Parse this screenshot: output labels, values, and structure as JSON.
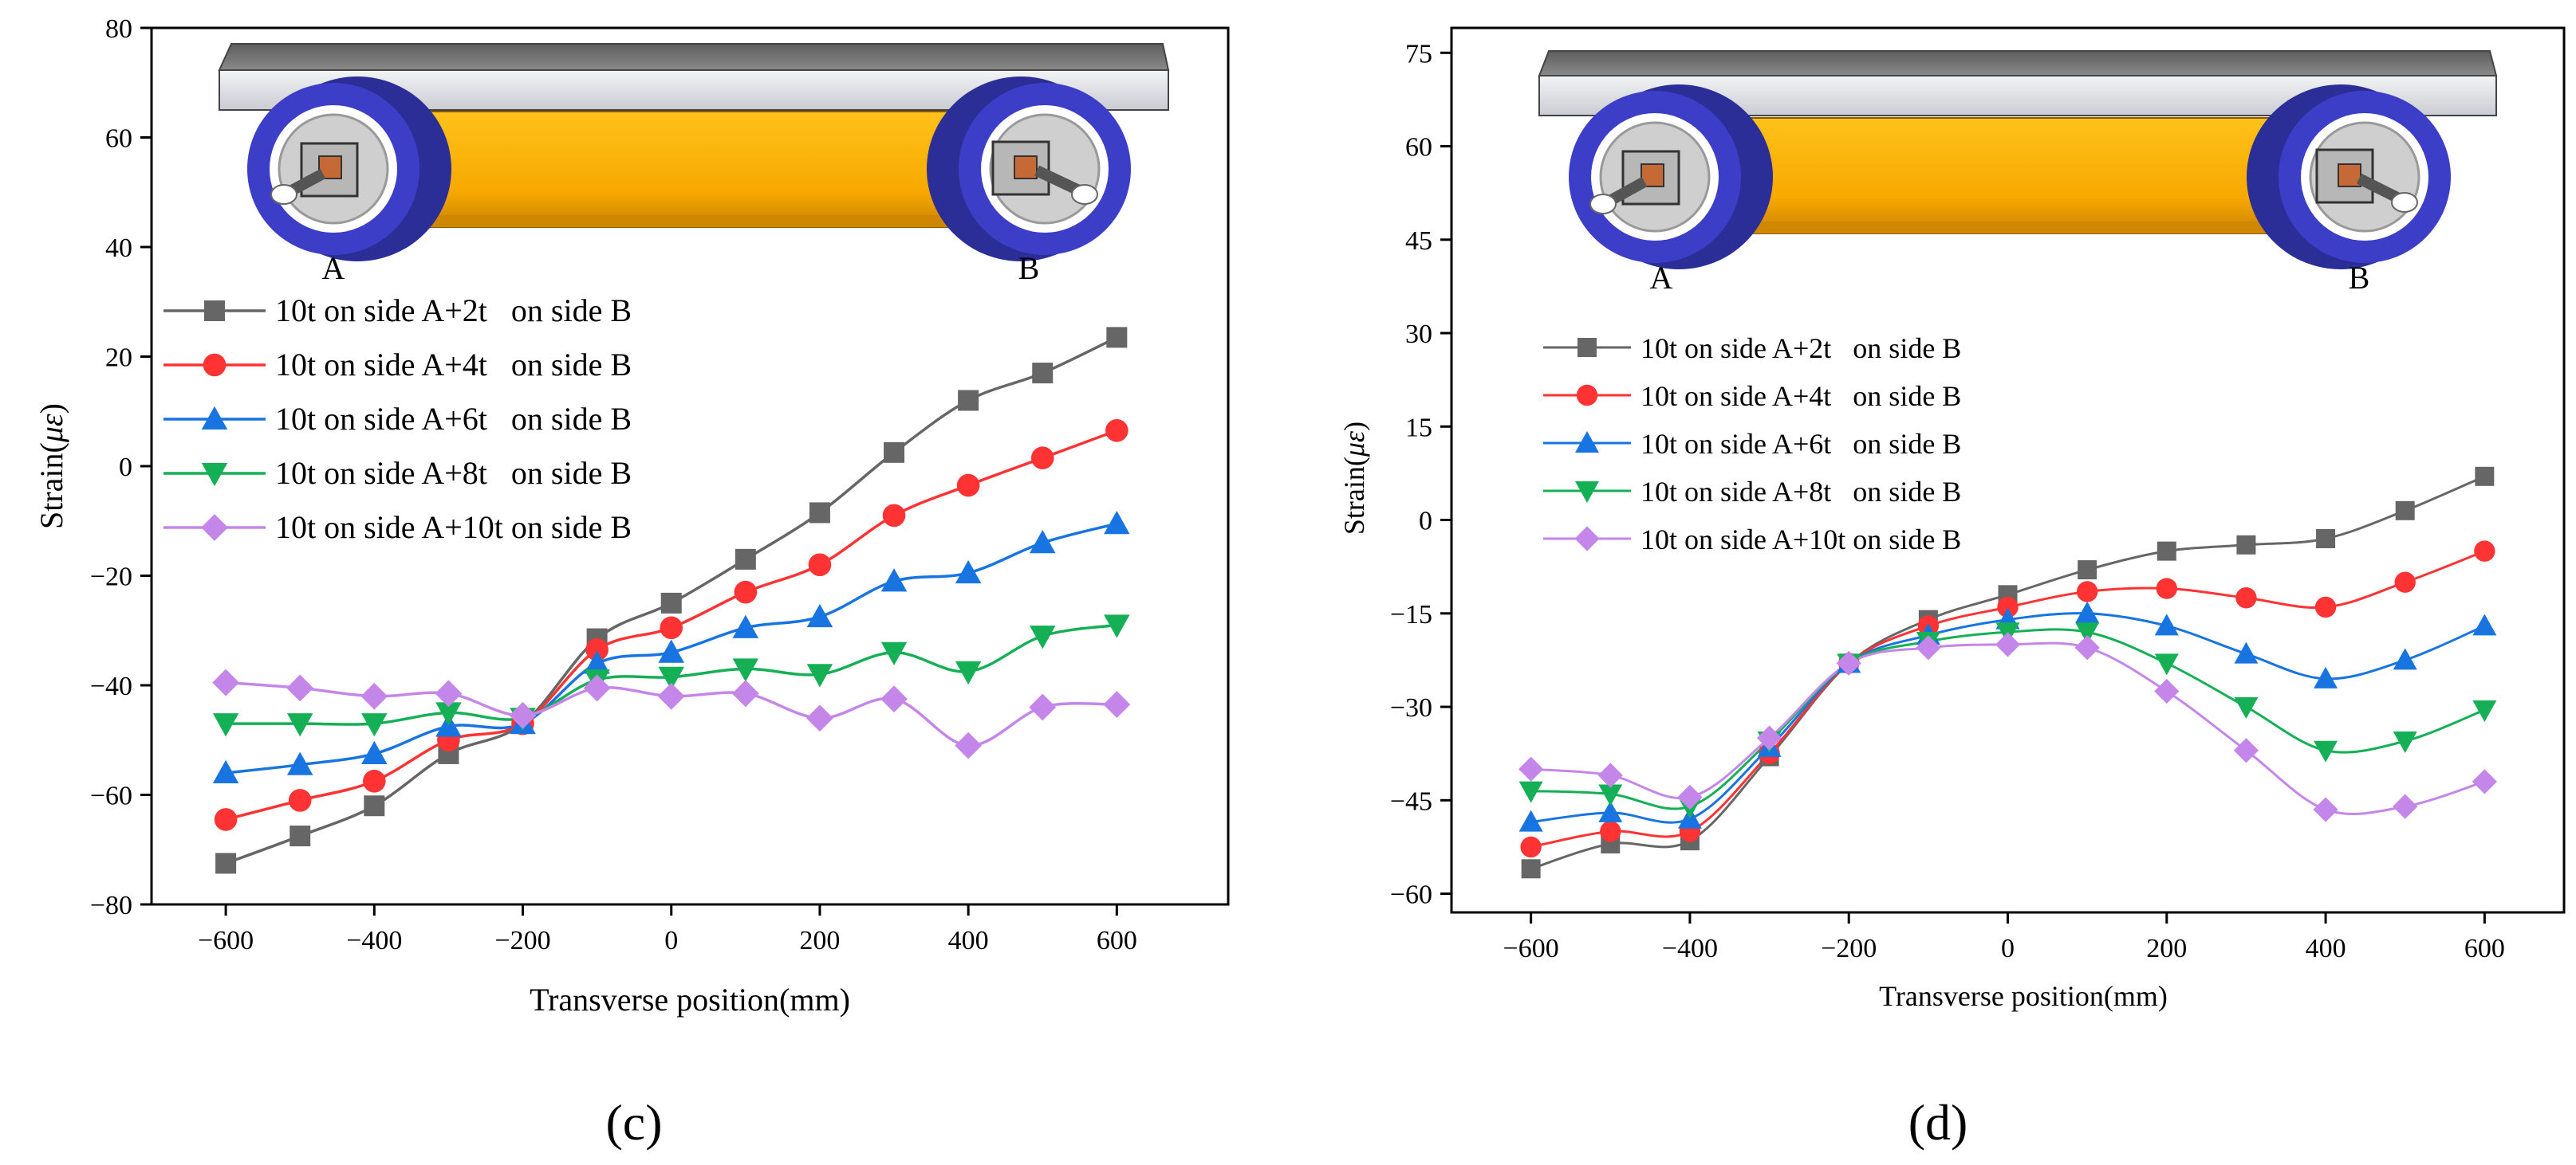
{
  "chart_data": [
    {
      "type": "line",
      "panel_label": "(c)",
      "xlabel": "Transverse position(mm)",
      "ylabel": "Strain(με)",
      "ylabel_parts": [
        "Strain(",
        "με",
        ")"
      ],
      "xlim": [
        -700,
        750
      ],
      "ylim": [
        -80,
        80
      ],
      "xticks": [
        -600,
        -400,
        -200,
        0,
        200,
        400,
        600
      ],
      "yticks": [
        -80,
        -60,
        -40,
        -20,
        0,
        20,
        40,
        60,
        80
      ],
      "x": [
        -600,
        -500,
        -400,
        -300,
        -200,
        -100,
        0,
        100,
        200,
        300,
        400,
        500,
        600
      ],
      "inset": {
        "side_a_label": "A",
        "side_b_label": "B"
      },
      "legend_position": "left-middle",
      "series": [
        {
          "name": "10t on side A+2t   on side B",
          "color": "#666666",
          "marker": "square",
          "values": [
            -72.5,
            -67.5,
            -62,
            -52.5,
            -47,
            -31.5,
            -25,
            -17,
            -8.5,
            2.5,
            12,
            17,
            23.5
          ]
        },
        {
          "name": "10t on side A+4t   on side B",
          "color": "#ff3333",
          "marker": "circle",
          "values": [
            -64.5,
            -61,
            -57.5,
            -50,
            -47,
            -33.5,
            -29.5,
            -23,
            -18,
            -9,
            -3.5,
            1.5,
            6.5
          ]
        },
        {
          "name": "10t on side A+6t   on side B",
          "color": "#1874e0",
          "marker": "triangle-up",
          "values": [
            -56,
            -54.5,
            -52.5,
            -47.5,
            -47,
            -36,
            -34,
            -29.5,
            -27.5,
            -21,
            -19.5,
            -14,
            -10.5
          ]
        },
        {
          "name": "10t on side A+8t   on side B",
          "color": "#15b055",
          "marker": "triangle-down",
          "values": [
            -47,
            -47,
            -47,
            -45,
            -46,
            -39,
            -38.5,
            -37,
            -38,
            -34,
            -37.5,
            -31,
            -29
          ]
        },
        {
          "name": "10t on side A+10t on side B",
          "color": "#c586ea",
          "marker": "diamond",
          "values": [
            -39.5,
            -40.5,
            -42,
            -41.5,
            -45.5,
            -40.5,
            -42,
            -41.5,
            -46,
            -42.5,
            -51,
            -44,
            -43.5
          ]
        }
      ]
    },
    {
      "type": "line",
      "panel_label": "(d)",
      "xlabel": "Transverse position(mm)",
      "ylabel": "Strain(με)",
      "ylabel_parts": [
        "Strain(",
        "με",
        ")"
      ],
      "xlim": [
        -700,
        700
      ],
      "ylim": [
        -63,
        79
      ],
      "xticks": [
        -600,
        -400,
        -200,
        0,
        200,
        400,
        600
      ],
      "yticks": [
        -60,
        -45,
        -30,
        -15,
        0,
        15,
        30,
        45,
        60,
        75
      ],
      "x": [
        -600,
        -500,
        -400,
        -300,
        -200,
        -100,
        0,
        100,
        200,
        300,
        400,
        500,
        600
      ],
      "inset": {
        "side_a_label": "A",
        "side_b_label": "B"
      },
      "legend_position": "left-middle",
      "series": [
        {
          "name": "10t on side A+2t   on side B",
          "color": "#666666",
          "marker": "square",
          "values": [
            -56,
            -52,
            -51.5,
            -38,
            -23,
            -16,
            -12,
            -8,
            -5,
            -4,
            -3,
            1.5,
            7
          ]
        },
        {
          "name": "10t on side A+4t   on side B",
          "color": "#ff3333",
          "marker": "circle",
          "values": [
            -52.5,
            -50,
            -50,
            -37.5,
            -23,
            -17,
            -14,
            -11.5,
            -11,
            -12.5,
            -14,
            -10,
            -5
          ]
        },
        {
          "name": "10t on side A+6t   on side B",
          "color": "#1874e0",
          "marker": "triangle-up",
          "values": [
            -48.5,
            -47,
            -48,
            -36.5,
            -23,
            -18.5,
            -16,
            -15,
            -17,
            -21.5,
            -25.5,
            -22.5,
            -17
          ]
        },
        {
          "name": "10t on side A+8t   on side B",
          "color": "#15b055",
          "marker": "triangle-down",
          "values": [
            -43.5,
            -44,
            -46,
            -35.5,
            -23,
            -19.5,
            -18,
            -18,
            -23,
            -30,
            -37,
            -35.5,
            -30.5
          ]
        },
        {
          "name": "10t on side A+10t on side B",
          "color": "#c586ea",
          "marker": "diamond",
          "values": [
            -40,
            -41,
            -44.5,
            -35,
            -23,
            -20.5,
            -20,
            -20.5,
            -27.5,
            -37,
            -46.5,
            -46,
            -42
          ]
        }
      ]
    }
  ]
}
